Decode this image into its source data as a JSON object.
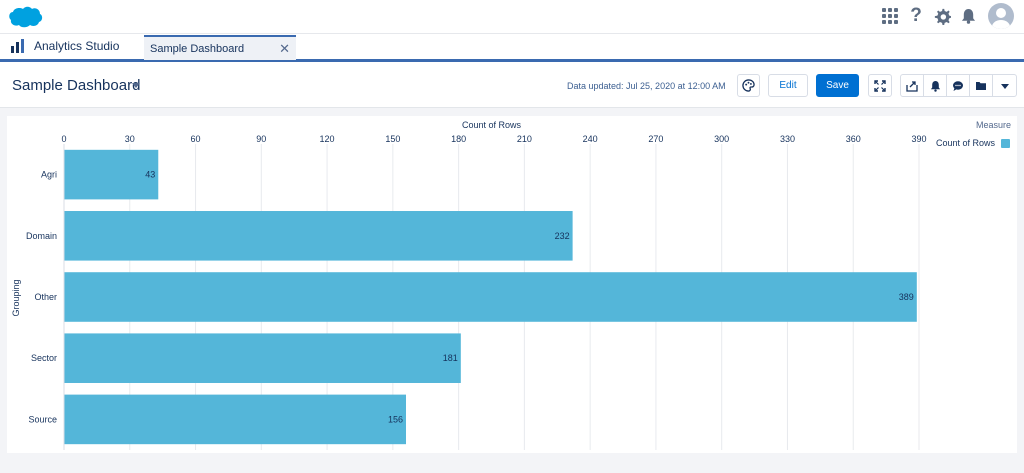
{
  "header": {
    "logo": "salesforce-cloud-logo",
    "icons": [
      "app-launcher-icon",
      "help-icon",
      "setup-gear-icon",
      "notification-bell-icon",
      "user-avatar"
    ],
    "help_glyph": "?"
  },
  "tab_bar": {
    "app_name": "Analytics Studio",
    "tabs": [
      {
        "label": "Sample Dashboard",
        "close": "✕"
      }
    ]
  },
  "dashboard": {
    "title": "Sample Dashboard",
    "updated": "Data updated: Jul 25, 2020 at 12:00 AM",
    "edit_label": "Edit",
    "save_label": "Save"
  },
  "colors": {
    "bar": "#54b6d9",
    "brand": "#00a1e0",
    "primary_button": "#0070d2",
    "tab_accent": "#3a6ab0"
  },
  "chart_data": {
    "type": "bar",
    "orientation": "horizontal",
    "title": "Count of Rows",
    "ylabel": "Grouping",
    "categories": [
      "Agri",
      "Domain",
      "Other",
      "Sector",
      "Source"
    ],
    "series": [
      {
        "name": "Count of Rows",
        "values": [
          43,
          232,
          389,
          181,
          156
        ]
      }
    ],
    "xlim": [
      0,
      390
    ],
    "x_ticks": [
      0,
      30,
      60,
      90,
      120,
      150,
      180,
      210,
      240,
      270,
      300,
      330,
      360,
      390
    ],
    "grid": true,
    "legend_title": "Measure",
    "legend_position": "top-right",
    "data_labels": true
  }
}
